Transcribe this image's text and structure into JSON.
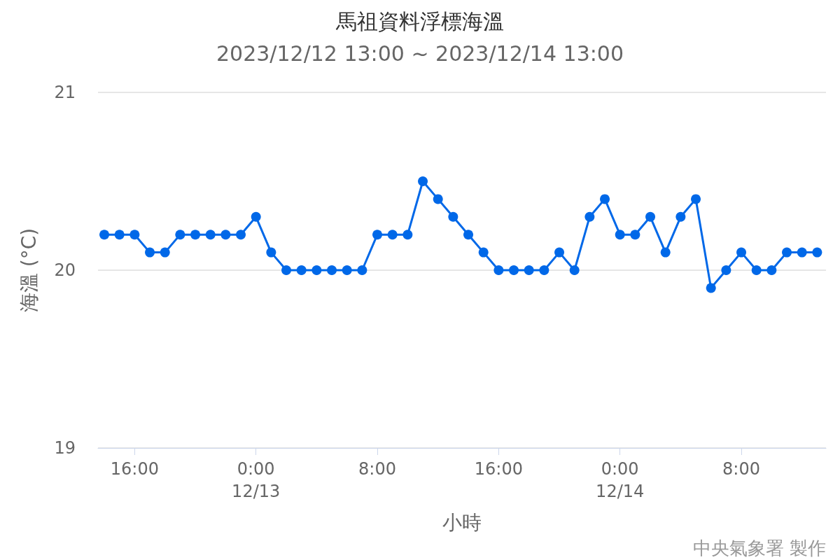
{
  "chart_data": {
    "type": "line",
    "title": "馬祖資料浮標海溫",
    "subtitle": "2023/12/12 13:00 ~ 2023/12/14 13:00",
    "xlabel": "小時",
    "ylabel": "海溫 (°C)",
    "x": [
      "2023-12-12T14:00",
      "2023-12-12T15:00",
      "2023-12-12T16:00",
      "2023-12-12T17:00",
      "2023-12-12T18:00",
      "2023-12-12T19:00",
      "2023-12-12T20:00",
      "2023-12-12T21:00",
      "2023-12-12T22:00",
      "2023-12-12T23:00",
      "2023-12-13T00:00",
      "2023-12-13T01:00",
      "2023-12-13T02:00",
      "2023-12-13T03:00",
      "2023-12-13T04:00",
      "2023-12-13T05:00",
      "2023-12-13T06:00",
      "2023-12-13T07:00",
      "2023-12-13T08:00",
      "2023-12-13T09:00",
      "2023-12-13T10:00",
      "2023-12-13T11:00",
      "2023-12-13T12:00",
      "2023-12-13T13:00",
      "2023-12-13T14:00",
      "2023-12-13T15:00",
      "2023-12-13T16:00",
      "2023-12-13T17:00",
      "2023-12-13T18:00",
      "2023-12-13T19:00",
      "2023-12-13T20:00",
      "2023-12-13T21:00",
      "2023-12-13T22:00",
      "2023-12-13T23:00",
      "2023-12-14T00:00",
      "2023-12-14T01:00",
      "2023-12-14T02:00",
      "2023-12-14T03:00",
      "2023-12-14T04:00",
      "2023-12-14T05:00",
      "2023-12-14T06:00",
      "2023-12-14T07:00",
      "2023-12-14T08:00",
      "2023-12-14T09:00",
      "2023-12-14T10:00",
      "2023-12-14T11:00",
      "2023-12-14T12:00",
      "2023-12-14T13:00"
    ],
    "series": [
      {
        "color": "#0068e8",
        "values": [
          20.2,
          20.2,
          20.2,
          20.1,
          20.1,
          20.2,
          20.2,
          20.2,
          20.2,
          20.2,
          20.3,
          20.1,
          20.0,
          20.0,
          20.0,
          20.0,
          20.0,
          20.0,
          20.2,
          20.2,
          20.2,
          20.5,
          20.4,
          20.3,
          20.2,
          20.1,
          20.0,
          20.0,
          20.0,
          20.0,
          20.1,
          20.0,
          20.3,
          20.4,
          20.2,
          20.2,
          20.3,
          20.1,
          20.3,
          20.4,
          19.9,
          20.0,
          20.1,
          20.0,
          20.0,
          20.1,
          20.1,
          20.1
        ]
      }
    ],
    "xlim": [
      "2023-12-12T13:35",
      "2023-12-14T13:35"
    ],
    "xticks": [
      {
        "value": "2023-12-12T16:00",
        "label": "16:00"
      },
      {
        "value": "2023-12-13T00:00",
        "label": "0:00\n12/13"
      },
      {
        "value": "2023-12-13T08:00",
        "label": "8:00"
      },
      {
        "value": "2023-12-13T16:00",
        "label": "16:00"
      },
      {
        "value": "2023-12-14T00:00",
        "label": "0:00\n12/14"
      },
      {
        "value": "2023-12-14T08:00",
        "label": "8:00"
      }
    ],
    "ylim": [
      19,
      21
    ],
    "yticks": [
      19,
      20,
      21
    ],
    "grid": "y",
    "marker": "circle",
    "line_style": "solid",
    "annotations": [
      "中央氣象署 製作"
    ]
  }
}
